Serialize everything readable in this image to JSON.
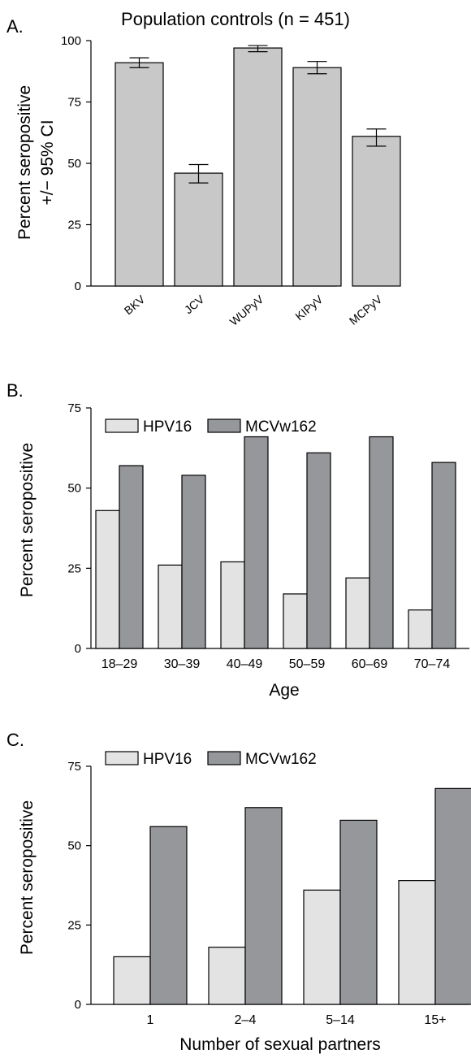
{
  "colors": {
    "bar_grey": "#c8c8c8",
    "hpv16": "#e3e3e3",
    "mcvw162": "#95979a",
    "stroke": "#000000"
  },
  "panels": {
    "a": {
      "letter": "A."
    },
    "b": {
      "letter": "B."
    },
    "c": {
      "letter": "C."
    }
  },
  "chart_data": [
    {
      "type": "bar",
      "title": "Population controls (n = 451)",
      "xlabel": "",
      "ylabel": [
        "Percent seropositive",
        "+/− 95% CI"
      ],
      "ylim": [
        0,
        100
      ],
      "yticks": [
        0,
        25,
        50,
        75,
        100
      ],
      "categories": [
        "BKV",
        "JCV",
        "WUPyV",
        "KIPyV",
        "MCPyV"
      ],
      "values": [
        91,
        46,
        97,
        89,
        61
      ],
      "ci_low": [
        89,
        42,
        95.5,
        86.5,
        57
      ],
      "ci_high": [
        93,
        49.5,
        98,
        91.5,
        64
      ],
      "error_bars": true,
      "grid": false
    },
    {
      "type": "bar",
      "xlabel": "Age",
      "ylabel": "Percent seropositive",
      "ylim": [
        0,
        75
      ],
      "yticks": [
        0,
        25,
        50,
        75
      ],
      "categories": [
        "18–29",
        "30–39",
        "40–49",
        "50–59",
        "60–69",
        "70–74"
      ],
      "series": [
        {
          "name": "HPV16",
          "values": [
            43,
            26,
            27,
            17,
            22,
            12
          ]
        },
        {
          "name": "MCVw162",
          "values": [
            57,
            54,
            66,
            61,
            66,
            58
          ]
        }
      ],
      "legend": "top-left",
      "grid": false
    },
    {
      "type": "bar",
      "xlabel": "Number of sexual partners",
      "ylabel": "Percent seropositive",
      "ylim": [
        0,
        75
      ],
      "yticks": [
        0,
        25,
        50,
        75
      ],
      "categories": [
        "1",
        "2–4",
        "5–14",
        "15+"
      ],
      "series": [
        {
          "name": "HPV16",
          "values": [
            15,
            18,
            36,
            39
          ]
        },
        {
          "name": "MCVw162",
          "values": [
            56,
            62,
            58,
            68
          ]
        }
      ],
      "legend": "top-left",
      "grid": false
    }
  ]
}
